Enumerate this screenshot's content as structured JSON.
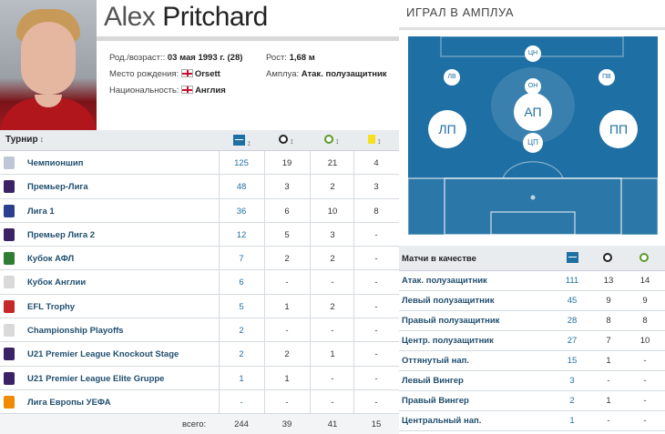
{
  "player": {
    "first_name": "Alex",
    "last_name": "Pritchard",
    "dob_label": "Род./возраст::",
    "dob_value": "03 мая 1993 г. (28)",
    "height_label": "Рост:",
    "height_value": "1,68 м",
    "birthplace_label": "Место рождения:",
    "birthplace_value": "Orsett",
    "position_label": "Амплуа:",
    "position_value": "Атак. полузащитник",
    "nationality_label": "Национальность:",
    "nationality_value": "Англия"
  },
  "stats_table": {
    "header": {
      "tournament": "Турнир",
      "sort_glyph": "↕"
    },
    "rows": [
      {
        "name": "Чемпионшип",
        "apps": "125",
        "goals": "19",
        "assists": "21",
        "cards": "4"
      },
      {
        "name": "Премьер-Лига",
        "apps": "48",
        "goals": "3",
        "assists": "2",
        "cards": "3"
      },
      {
        "name": "Лига 1",
        "apps": "36",
        "goals": "6",
        "assists": "10",
        "cards": "8"
      },
      {
        "name": "Премьер Лига 2",
        "apps": "12",
        "goals": "5",
        "assists": "3",
        "cards": "-"
      },
      {
        "name": "Кубок АФЛ",
        "apps": "7",
        "goals": "2",
        "assists": "2",
        "cards": "-"
      },
      {
        "name": "Кубок Англии",
        "apps": "6",
        "goals": "-",
        "assists": "-",
        "cards": "-"
      },
      {
        "name": "EFL Trophy",
        "apps": "5",
        "goals": "1",
        "assists": "2",
        "cards": "-"
      },
      {
        "name": "Championship Playoffs",
        "apps": "2",
        "goals": "-",
        "assists": "-",
        "cards": "-"
      },
      {
        "name": "U21 Premier League Knockout Stage",
        "apps": "2",
        "goals": "2",
        "assists": "1",
        "cards": "-"
      },
      {
        "name": "U21 Premier League Elite Gruppe",
        "apps": "1",
        "goals": "1",
        "assists": "-",
        "cards": "-"
      },
      {
        "name": "Лига Европы УЕФА",
        "apps": "-",
        "goals": "-",
        "assists": "-",
        "cards": "-"
      }
    ],
    "total": {
      "label": "всего:",
      "apps": "244",
      "goals": "39",
      "assists": "41",
      "cards": "15"
    }
  },
  "positions_panel": {
    "title": "ИГРАЛ В АМПЛУА",
    "markers": {
      "cf": "ЦН",
      "lw": "ЛВ",
      "rw": "ПВ",
      "am_top": "ОН",
      "am": "АП",
      "lm": "ЛП",
      "rm": "ПП",
      "cm": "ЦП"
    },
    "table_header": "Матчи в качестве",
    "rows": [
      {
        "role": "Атак. полузащитник",
        "apps": "111",
        "goals": "13",
        "assists": "14"
      },
      {
        "role": "Левый полузащитник",
        "apps": "45",
        "goals": "9",
        "assists": "9"
      },
      {
        "role": "Правый полузащитник",
        "apps": "28",
        "goals": "8",
        "assists": "8"
      },
      {
        "role": "Центр. полузащитник",
        "apps": "27",
        "goals": "7",
        "assists": "10"
      },
      {
        "role": "Оттянутый нап.",
        "apps": "15",
        "goals": "1",
        "assists": "-"
      },
      {
        "role": "Левый Вингер",
        "apps": "3",
        "goals": "-",
        "assists": "-"
      },
      {
        "role": "Правый Вингер",
        "apps": "2",
        "goals": "1",
        "assists": "-"
      },
      {
        "role": "Центральный нап.",
        "apps": "1",
        "goals": "-",
        "assists": "-"
      }
    ]
  }
}
